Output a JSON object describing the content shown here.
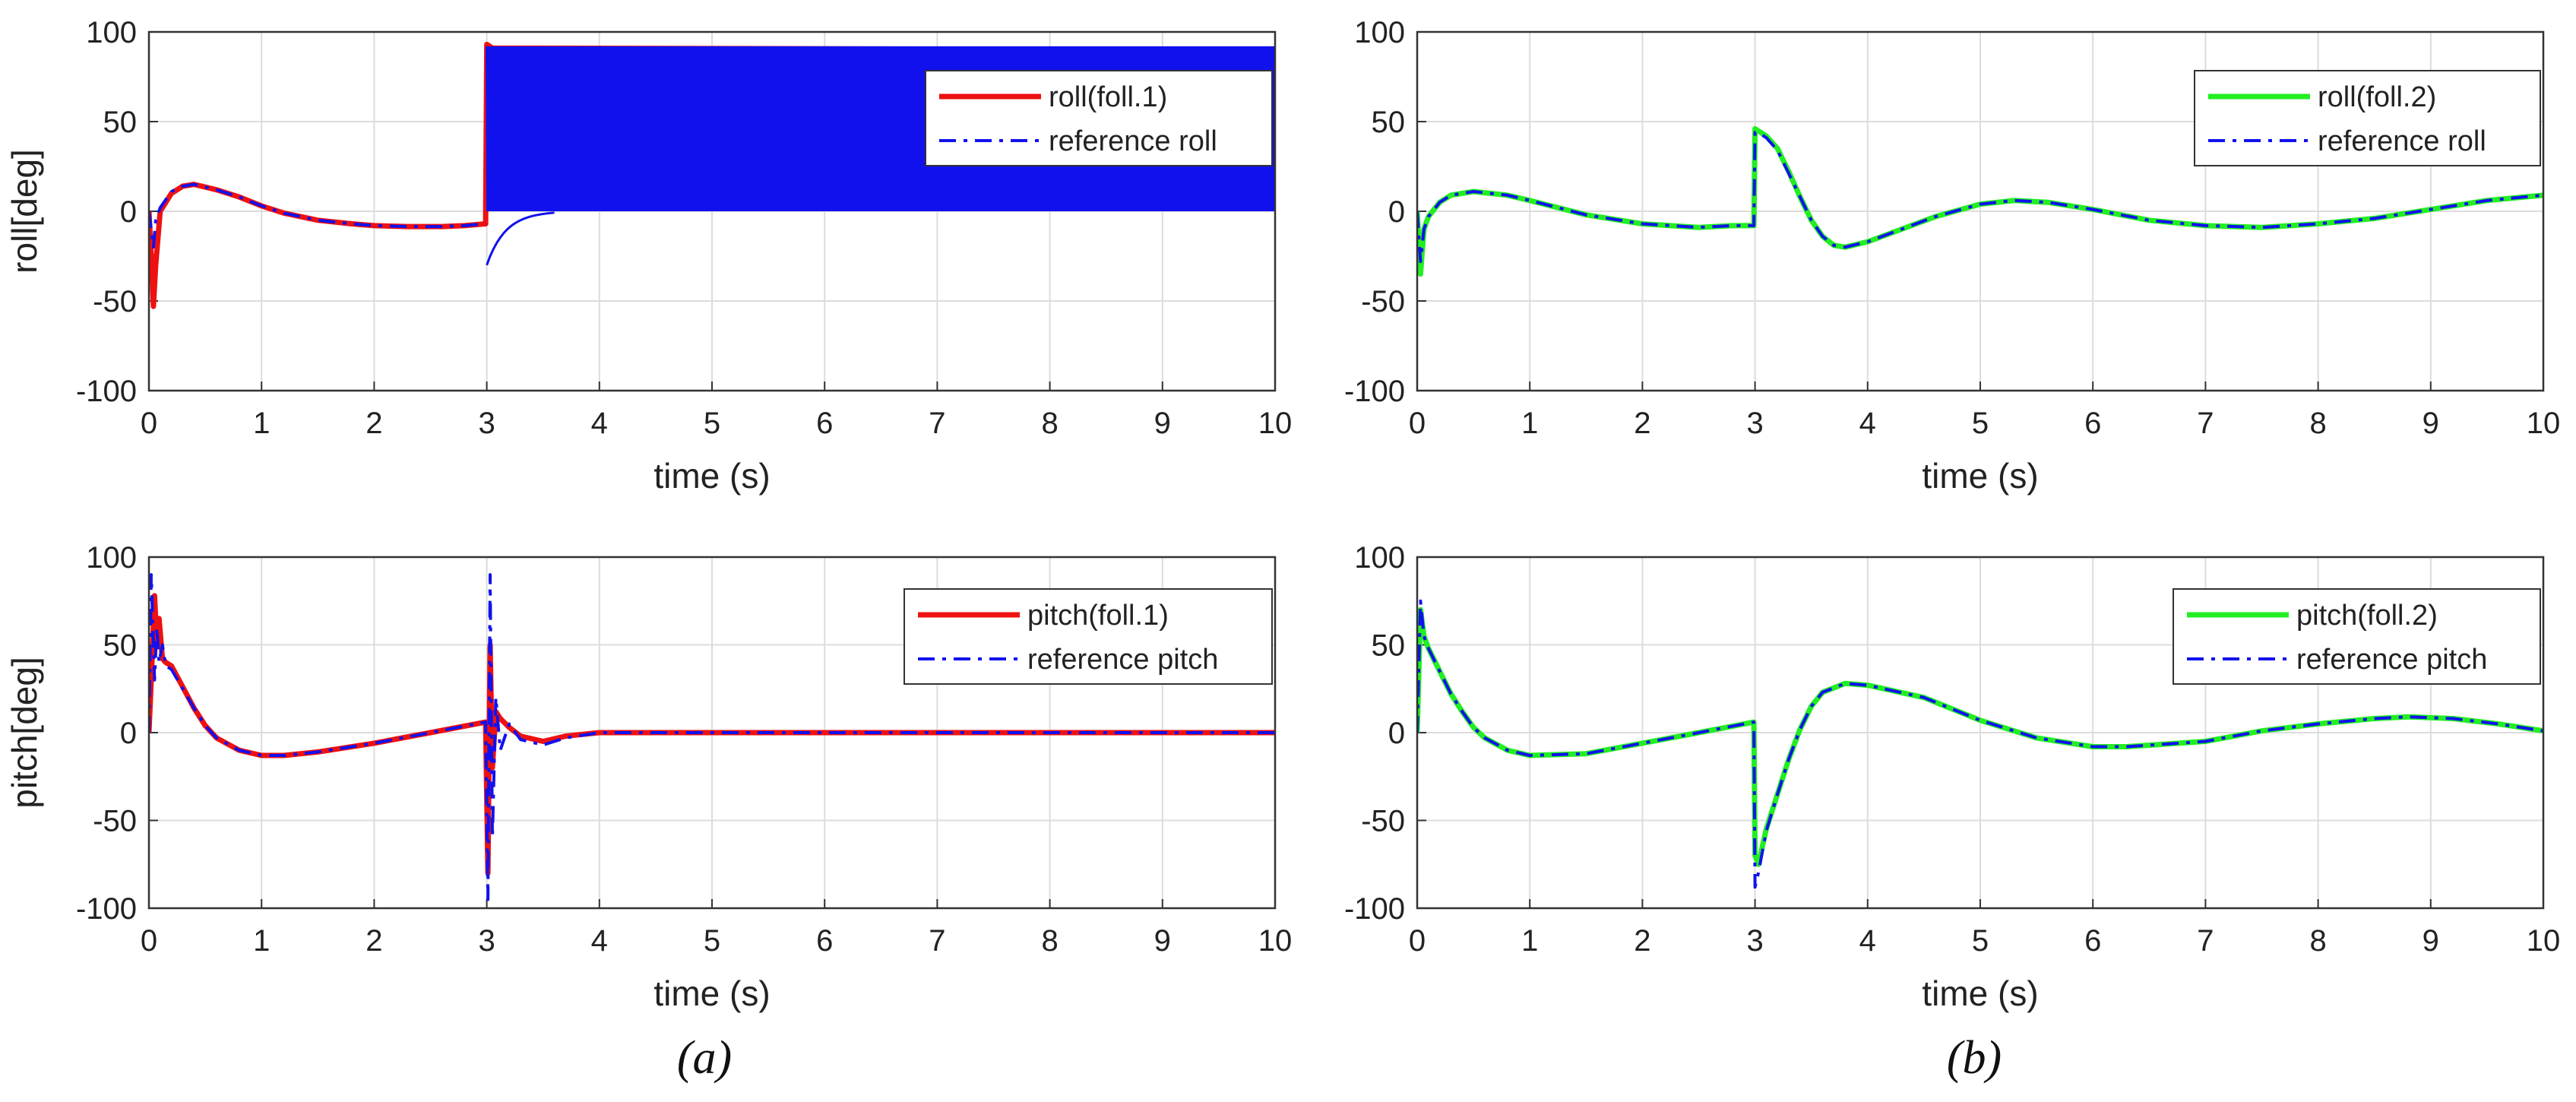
{
  "colors": {
    "foll1": "#ee1111",
    "foll2": "#22ee22",
    "reference": "#1111ee",
    "axis": "#333333",
    "grid": "#dcdcdc",
    "text": "#222222"
  },
  "captions": [
    "(a)",
    "(b)"
  ],
  "chart_data": [
    {
      "id": "roll-foll1",
      "type": "line",
      "xlabel": "time (s)",
      "ylabel": "roll[deg]",
      "xlim": [
        0,
        10
      ],
      "ylim": [
        -100,
        100
      ],
      "xticks": [
        0,
        1,
        2,
        3,
        4,
        5,
        6,
        7,
        8,
        9,
        10
      ],
      "yticks": [
        -100,
        -50,
        0,
        50,
        100
      ],
      "grid": true,
      "legend_position": "top-right",
      "series": [
        {
          "name": "roll(foll.1)",
          "color_key": "foll1",
          "style": "solid",
          "x": [
            0,
            0.02,
            0.04,
            0.06,
            0.1,
            0.2,
            0.3,
            0.4,
            0.6,
            0.8,
            1.0,
            1.2,
            1.5,
            1.8,
            2.0,
            2.3,
            2.6,
            2.8,
            2.99,
            3.0,
            3.05,
            10.0
          ],
          "y": [
            0,
            -25,
            -53,
            -30,
            0,
            10,
            14,
            15,
            12,
            8,
            3,
            -1,
            -5,
            -7,
            -8,
            -8.5,
            -8.5,
            -8,
            -7,
            93,
            91,
            90
          ]
        },
        {
          "name": "reference roll",
          "color_key": "reference",
          "style": "dashdot",
          "x": [
            0,
            0.02,
            0.04,
            0.06,
            0.1,
            0.2,
            0.3,
            0.4,
            0.6,
            0.8,
            1.0,
            1.2,
            1.5,
            1.8,
            2.0,
            2.3,
            2.6,
            2.8,
            2.99
          ],
          "y": [
            0,
            -10,
            -20,
            -5,
            2,
            11,
            14,
            15,
            12,
            8,
            3,
            -1,
            -5,
            -7,
            -8,
            -8.5,
            -8.5,
            -8,
            -7
          ],
          "band": {
            "x_start": 3.0,
            "x_end": 10.0,
            "upper": 92,
            "lower": 0,
            "transient_min": -30,
            "note": "rapid oscillation between 0 and 92"
          }
        }
      ]
    },
    {
      "id": "roll-foll2",
      "type": "line",
      "xlabel": "time (s)",
      "ylabel": "",
      "xlim": [
        0,
        10
      ],
      "ylim": [
        -100,
        100
      ],
      "xticks": [
        0,
        1,
        2,
        3,
        4,
        5,
        6,
        7,
        8,
        9,
        10
      ],
      "yticks": [
        -100,
        -50,
        0,
        50,
        100
      ],
      "grid": true,
      "legend_position": "top-right",
      "series": [
        {
          "name": "roll(foll.2)",
          "color_key": "foll2",
          "style": "solid",
          "x": [
            0,
            0.03,
            0.06,
            0.1,
            0.2,
            0.3,
            0.5,
            0.8,
            1.0,
            1.5,
            2.0,
            2.5,
            2.8,
            2.99,
            3.0,
            3.05,
            3.1,
            3.2,
            3.3,
            3.4,
            3.5,
            3.6,
            3.7,
            3.8,
            4.0,
            4.3,
            4.6,
            5.0,
            5.3,
            5.6,
            6.0,
            6.5,
            7.0,
            7.5,
            8.0,
            8.5,
            9.0,
            9.5,
            10.0
          ],
          "y": [
            0,
            -35,
            -10,
            -3,
            5,
            9,
            11,
            9,
            6,
            -2,
            -7,
            -9,
            -8,
            -8,
            46,
            44,
            42,
            35,
            22,
            8,
            -5,
            -14,
            -19,
            -20,
            -17,
            -10,
            -3,
            4,
            6,
            5,
            1,
            -5,
            -8,
            -9,
            -7,
            -4,
            1,
            6,
            9
          ]
        },
        {
          "name": "reference roll",
          "color_key": "reference",
          "style": "dashdot",
          "x": [
            0,
            0.03,
            0.06,
            0.1,
            0.2,
            0.3,
            0.5,
            0.8,
            1.0,
            1.5,
            2.0,
            2.5,
            2.8,
            2.99,
            3.0,
            3.05,
            3.1,
            3.2,
            3.3,
            3.4,
            3.5,
            3.6,
            3.7,
            3.8,
            4.0,
            4.3,
            4.6,
            5.0,
            5.3,
            5.6,
            6.0,
            6.5,
            7.0,
            7.5,
            8.0,
            8.5,
            9.0,
            9.5,
            10.0
          ],
          "y": [
            0,
            -28,
            -10,
            -3,
            5,
            9,
            11,
            9,
            6,
            -2,
            -7,
            -9,
            -8,
            -8,
            44,
            43,
            41,
            34,
            21,
            8,
            -5,
            -14,
            -19,
            -20,
            -17,
            -10,
            -3,
            4,
            6,
            5,
            1,
            -5,
            -8,
            -9,
            -7,
            -4,
            1,
            6,
            9
          ]
        }
      ]
    },
    {
      "id": "pitch-foll1",
      "type": "line",
      "xlabel": "time (s)",
      "ylabel": "pitch[deg]",
      "xlim": [
        0,
        10
      ],
      "ylim": [
        -100,
        100
      ],
      "xticks": [
        0,
        1,
        2,
        3,
        4,
        5,
        6,
        7,
        8,
        9,
        10
      ],
      "yticks": [
        -100,
        -50,
        0,
        50,
        100
      ],
      "grid": true,
      "legend_position": "top-right",
      "series": [
        {
          "name": "pitch(foll.1)",
          "color_key": "foll1",
          "style": "solid",
          "x": [
            0,
            0.02,
            0.05,
            0.07,
            0.09,
            0.12,
            0.15,
            0.2,
            0.3,
            0.4,
            0.5,
            0.6,
            0.8,
            1.0,
            1.2,
            1.5,
            2.0,
            2.5,
            2.99,
            3.01,
            3.03,
            3.05,
            3.08,
            3.12,
            3.2,
            3.3,
            3.5,
            3.7,
            4.0,
            10.0
          ],
          "y": [
            0,
            30,
            78,
            50,
            65,
            42,
            40,
            38,
            26,
            14,
            4,
            -3,
            -10,
            -13,
            -13,
            -11,
            -6,
            0,
            6,
            -80,
            50,
            -20,
            12,
            8,
            3,
            -2,
            -5,
            -2,
            0,
            0
          ]
        },
        {
          "name": "reference pitch",
          "color_key": "reference",
          "style": "dashdot",
          "x": [
            0,
            0.02,
            0.05,
            0.07,
            0.09,
            0.12,
            0.15,
            0.2,
            0.3,
            0.4,
            0.5,
            0.6,
            0.8,
            1.0,
            1.2,
            1.5,
            2.0,
            2.5,
            2.99,
            3.01,
            3.03,
            3.05,
            3.08,
            3.12,
            3.2,
            3.3,
            3.5,
            3.7,
            4.0,
            10.0
          ],
          "y": [
            0,
            90,
            30,
            60,
            40,
            50,
            38,
            36,
            25,
            14,
            4,
            -3,
            -10,
            -13,
            -13,
            -11,
            -6,
            0,
            6,
            -95,
            90,
            -60,
            20,
            -10,
            5,
            -4,
            -7,
            -3,
            0,
            0
          ]
        }
      ]
    },
    {
      "id": "pitch-foll2",
      "type": "line",
      "xlabel": "time (s)",
      "ylabel": "",
      "xlim": [
        0,
        10
      ],
      "ylim": [
        -100,
        100
      ],
      "xticks": [
        0,
        1,
        2,
        3,
        4,
        5,
        6,
        7,
        8,
        9,
        10
      ],
      "yticks": [
        -100,
        -50,
        0,
        50,
        100
      ],
      "grid": true,
      "legend_position": "top-right",
      "series": [
        {
          "name": "pitch(foll.2)",
          "color_key": "foll2",
          "style": "solid",
          "x": [
            0,
            0.03,
            0.06,
            0.1,
            0.2,
            0.3,
            0.4,
            0.5,
            0.6,
            0.8,
            1.0,
            1.5,
            2.0,
            2.5,
            2.99,
            3.0,
            3.03,
            3.1,
            3.2,
            3.3,
            3.4,
            3.5,
            3.6,
            3.8,
            4.0,
            4.5,
            5.0,
            5.5,
            6.0,
            6.3,
            7.0,
            7.5,
            8.0,
            8.5,
            8.8,
            9.2,
            9.6,
            10.0
          ],
          "y": [
            0,
            70,
            55,
            48,
            35,
            22,
            12,
            3,
            -3,
            -10,
            -13,
            -12,
            -6,
            0,
            6,
            -70,
            -75,
            -55,
            -35,
            -15,
            2,
            15,
            23,
            28,
            27,
            20,
            7,
            -3,
            -8,
            -8,
            -5,
            1,
            5,
            8,
            9,
            8,
            5,
            1
          ]
        },
        {
          "name": "reference pitch",
          "color_key": "reference",
          "style": "dashdot",
          "x": [
            0,
            0.03,
            0.06,
            0.1,
            0.2,
            0.3,
            0.4,
            0.5,
            0.6,
            0.8,
            1.0,
            1.5,
            2.0,
            2.5,
            2.99,
            3.0,
            3.03,
            3.1,
            3.2,
            3.3,
            3.4,
            3.5,
            3.6,
            3.8,
            4.0,
            4.5,
            5.0,
            5.5,
            6.0,
            6.3,
            7.0,
            7.5,
            8.0,
            8.5,
            8.8,
            9.2,
            9.6,
            10.0
          ],
          "y": [
            0,
            75,
            55,
            48,
            35,
            22,
            12,
            3,
            -3,
            -10,
            -13,
            -12,
            -6,
            0,
            6,
            -88,
            -80,
            -56,
            -35,
            -15,
            2,
            15,
            23,
            28,
            27,
            20,
            7,
            -3,
            -8,
            -8,
            -5,
            1,
            5,
            8,
            9,
            8,
            5,
            1
          ]
        }
      ]
    }
  ]
}
